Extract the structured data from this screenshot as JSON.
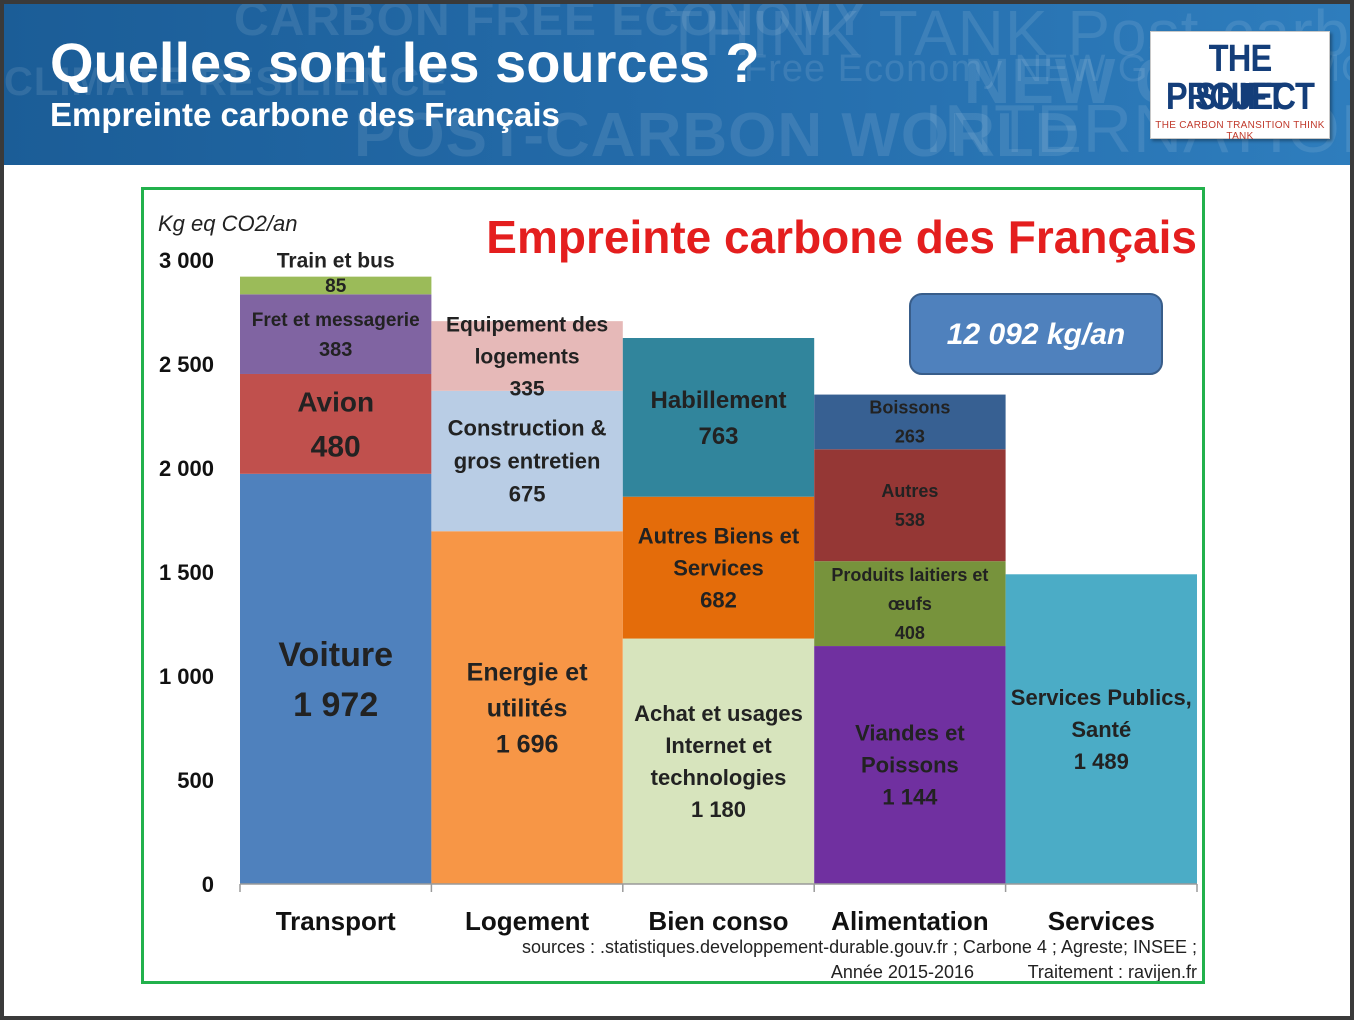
{
  "header": {
    "title": "Quelles sont les sources ?",
    "subtitle": "Empreinte carbone des Français",
    "watermark": [
      "CARBON FREE ECONOMY",
      "THINK TANK Post-carbon W",
      "Free Economy NEW GROWTH MODEL",
      "NEW C",
      "CLIMATE RESILIENCE",
      "POST-CARBON WORLD",
      "INTERNATIONAL"
    ],
    "logo": {
      "line1": "THE SHIFT",
      "line2": "PROJECT",
      "tagline": "THE CARBON TRANSITION THINK TANK"
    }
  },
  "chart_data": {
    "type": "bar",
    "stacked": true,
    "title": "Empreinte carbone des Français",
    "ylabel": "Kg eq CO2/an",
    "ylim": [
      0,
      3000
    ],
    "yticks": [
      "0",
      "500",
      "1 000",
      "1 500",
      "2 000",
      "2 500",
      "3 000"
    ],
    "ytick_values": [
      0,
      500,
      1000,
      1500,
      2000,
      2500,
      3000
    ],
    "grid": false,
    "total_label": "12 092 kg/an",
    "categories": [
      "Transport",
      "Logement",
      "Bien conso",
      "Alimentation",
      "Services"
    ],
    "stacks": [
      {
        "category": "Transport",
        "segments": [
          {
            "label": "Voiture",
            "display": "1 972",
            "value": 1972,
            "color": "#4f81bd"
          },
          {
            "label": "Avion",
            "display": "480",
            "value": 480,
            "color": "#c0504d"
          },
          {
            "label": "Fret et messagerie",
            "display": "383",
            "value": 383,
            "color": "#8064a2"
          },
          {
            "label": "Train et bus",
            "display": "85",
            "value": 85,
            "color": "#9bbb59"
          }
        ]
      },
      {
        "category": "Logement",
        "segments": [
          {
            "label": "Energie et utilités",
            "display": "1 696",
            "value": 1696,
            "color": "#f79646"
          },
          {
            "label": "Construction & gros entretien",
            "display": "675",
            "value": 675,
            "color": "#b9cde5"
          },
          {
            "label": "Equipement des logements",
            "display": "335",
            "value": 335,
            "color": "#e6b9b8"
          }
        ]
      },
      {
        "category": "Bien conso",
        "segments": [
          {
            "label": "Achat et usages Internet et technologies",
            "display": "1 180",
            "value": 1180,
            "color": "#d7e4bd"
          },
          {
            "label": "Autres Biens et Services",
            "display": "682",
            "value": 682,
            "color": "#e46c0a"
          },
          {
            "label": "Habillement",
            "display": "763",
            "value": 763,
            "color": "#31859c"
          }
        ]
      },
      {
        "category": "Alimentation",
        "segments": [
          {
            "label": "Viandes et Poissons",
            "display": "1 144",
            "value": 1144,
            "color": "#7030a0"
          },
          {
            "label": "Produits laitiers et œufs",
            "display": "408",
            "value": 408,
            "color": "#77933c"
          },
          {
            "label": "Autres",
            "display": "538",
            "value": 538,
            "color": "#953735"
          },
          {
            "label": "Boissons",
            "display": "263",
            "value": 263,
            "color": "#376092"
          }
        ]
      },
      {
        "category": "Services",
        "segments": [
          {
            "label": "Services Publics, Santé",
            "display": "1 489",
            "value": 1489,
            "color": "#4bacc6"
          }
        ]
      }
    ],
    "sources": "sources : .statistiques.developpement-durable.gouv.fr ; Carbone 4 ; Agreste;  INSEE ;",
    "year": "Année 2015-2016",
    "treatment": "Traitement : ravijen.fr"
  }
}
